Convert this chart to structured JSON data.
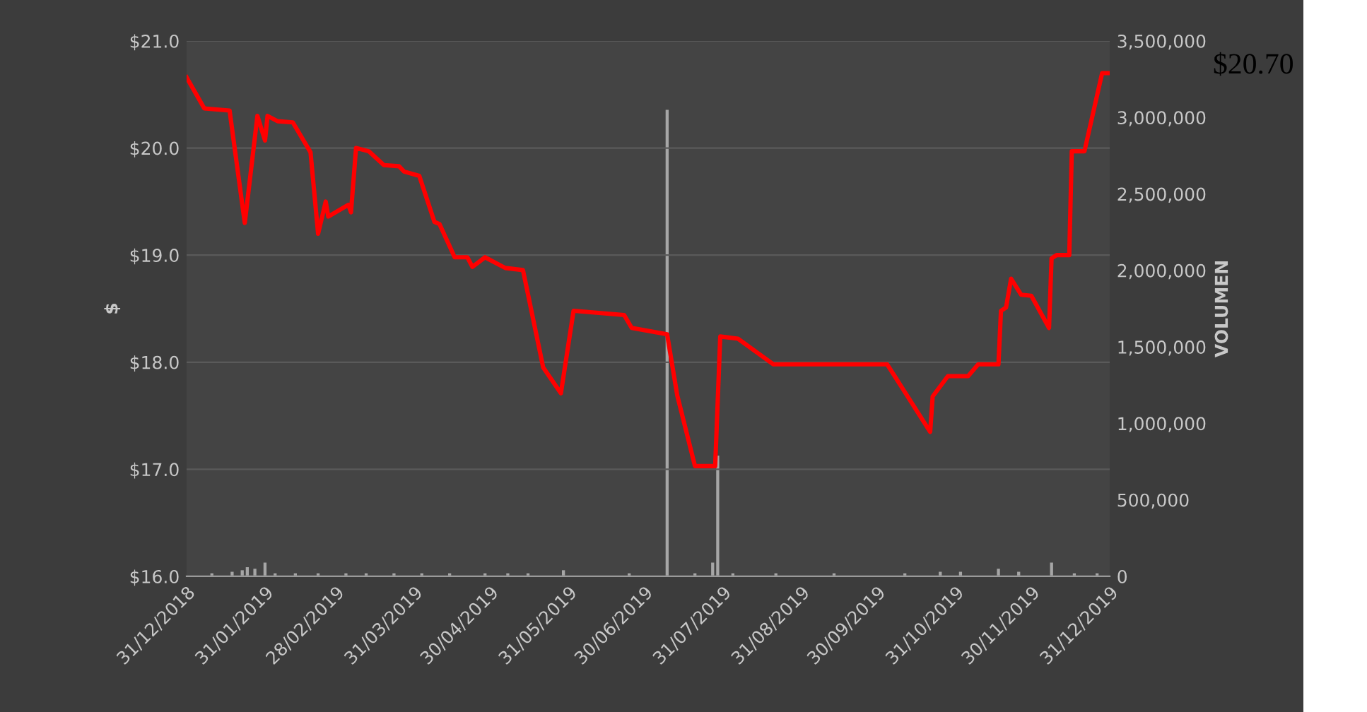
{
  "chart_data": {
    "type": "line",
    "ylabel": "$",
    "y2label": "VOLUMEN",
    "grid": "y",
    "xlim": [
      "2018-12-31",
      "2019-12-31"
    ],
    "xticks": [
      {
        "value": "2018-12-31",
        "label": "31/12/2018"
      },
      {
        "value": "2019-01-31",
        "label": "31/01/2019"
      },
      {
        "value": "2019-02-28",
        "label": "28/02/2019"
      },
      {
        "value": "2019-03-31",
        "label": "31/03/2019"
      },
      {
        "value": "2019-04-30",
        "label": "30/04/2019"
      },
      {
        "value": "2019-05-31",
        "label": "31/05/2019"
      },
      {
        "value": "2019-06-30",
        "label": "30/06/2019"
      },
      {
        "value": "2019-07-31",
        "label": "31/07/2019"
      },
      {
        "value": "2019-08-31",
        "label": "31/08/2019"
      },
      {
        "value": "2019-09-30",
        "label": "30/09/2019"
      },
      {
        "value": "2019-10-31",
        "label": "31/10/2019"
      },
      {
        "value": "2019-11-30",
        "label": "30/11/2019"
      },
      {
        "value": "2019-12-31",
        "label": "31/12/2019"
      }
    ],
    "ylim": [
      16,
      21
    ],
    "yticks": [
      {
        "value": 16,
        "label": "$16.0"
      },
      {
        "value": 17,
        "label": "$17.0"
      },
      {
        "value": 18,
        "label": "$18.0"
      },
      {
        "value": 19,
        "label": "$19.0"
      },
      {
        "value": 20,
        "label": "$20.0"
      },
      {
        "value": 21,
        "label": "$21.0"
      }
    ],
    "y2lim": [
      0,
      3500000
    ],
    "y2ticks": [
      {
        "value": 0,
        "label": "0"
      },
      {
        "value": 500000,
        "label": "500,000"
      },
      {
        "value": 1000000,
        "label": "1,000,000"
      },
      {
        "value": 1500000,
        "label": "1,500,000"
      },
      {
        "value": 2000000,
        "label": "2,000,000"
      },
      {
        "value": 2500000,
        "label": "2,500,000"
      },
      {
        "value": 3000000,
        "label": "3,000,000"
      },
      {
        "value": 3500000,
        "label": "3,500,000"
      }
    ],
    "series": [
      {
        "type": "bar",
        "axis": "y2",
        "color": "#a6a6a6",
        "x": [
          "2019-01-10",
          "2019-01-18",
          "2019-01-22",
          "2019-01-24",
          "2019-01-27",
          "2019-01-31",
          "2019-02-04",
          "2019-02-12",
          "2019-02-21",
          "2019-03-04",
          "2019-03-12",
          "2019-03-23",
          "2019-04-03",
          "2019-04-14",
          "2019-04-28",
          "2019-05-07",
          "2019-05-15",
          "2019-05-29",
          "2019-06-24",
          "2019-07-09",
          "2019-07-20",
          "2019-07-27",
          "2019-07-29",
          "2019-08-04",
          "2019-08-21",
          "2019-09-13",
          "2019-10-11",
          "2019-10-25",
          "2019-11-02",
          "2019-11-17",
          "2019-11-25",
          "2019-12-08",
          "2019-12-17",
          "2019-12-26"
        ],
        "values": [
          20000,
          30000,
          40000,
          60000,
          50000,
          90000,
          20000,
          20000,
          20000,
          20000,
          20000,
          20000,
          20000,
          20000,
          20000,
          20000,
          20000,
          40000,
          20000,
          3050000,
          20000,
          90000,
          790000,
          20000,
          20000,
          20000,
          20000,
          30000,
          30000,
          50000,
          30000,
          90000,
          20000,
          20000
        ]
      },
      {
        "type": "line",
        "color": "#ff0000",
        "x": [
          "2018-12-31",
          "2019-01-07",
          "2019-01-17",
          "2019-01-23",
          "2019-01-28",
          "2019-01-31",
          "2019-02-01",
          "2019-02-05",
          "2019-02-11",
          "2019-02-18",
          "2019-02-21",
          "2019-02-24",
          "2019-02-25",
          "2019-03-05",
          "2019-03-06",
          "2019-03-08",
          "2019-03-13",
          "2019-03-19",
          "2019-03-25",
          "2019-03-27",
          "2019-04-02",
          "2019-04-08",
          "2019-04-10",
          "2019-04-16",
          "2019-04-21",
          "2019-04-23",
          "2019-04-28",
          "2019-05-06",
          "2019-05-13",
          "2019-05-21",
          "2019-05-28",
          "2019-06-02",
          "2019-06-22",
          "2019-06-25",
          "2019-07-09",
          "2019-07-13",
          "2019-07-20",
          "2019-07-28",
          "2019-07-30",
          "2019-08-06",
          "2019-08-20",
          "2019-10-04",
          "2019-10-21",
          "2019-10-22",
          "2019-10-28",
          "2019-11-05",
          "2019-11-09",
          "2019-11-17",
          "2019-11-18",
          "2019-11-20",
          "2019-11-22",
          "2019-11-26",
          "2019-11-30",
          "2019-12-07",
          "2019-12-08",
          "2019-12-10",
          "2019-12-15",
          "2019-12-16",
          "2019-12-21",
          "2019-12-28",
          "2019-12-31"
        ],
        "values": [
          20.66,
          20.37,
          20.35,
          19.3,
          20.3,
          20.07,
          20.3,
          20.25,
          20.24,
          19.96,
          19.2,
          19.5,
          19.36,
          19.47,
          19.4,
          20.0,
          19.97,
          19.84,
          19.83,
          19.78,
          19.74,
          19.31,
          19.29,
          18.98,
          18.98,
          18.89,
          18.98,
          18.88,
          18.86,
          17.95,
          17.71,
          18.48,
          18.44,
          18.32,
          18.26,
          17.69,
          17.03,
          17.03,
          18.24,
          18.22,
          17.98,
          17.98,
          17.35,
          17.68,
          17.87,
          17.87,
          17.98,
          17.98,
          18.48,
          18.51,
          18.78,
          18.63,
          18.62,
          18.32,
          18.97,
          19.0,
          19.0,
          19.97,
          19.97,
          20.7,
          20.7
        ]
      }
    ],
    "annotations": [
      "$20.70"
    ]
  }
}
